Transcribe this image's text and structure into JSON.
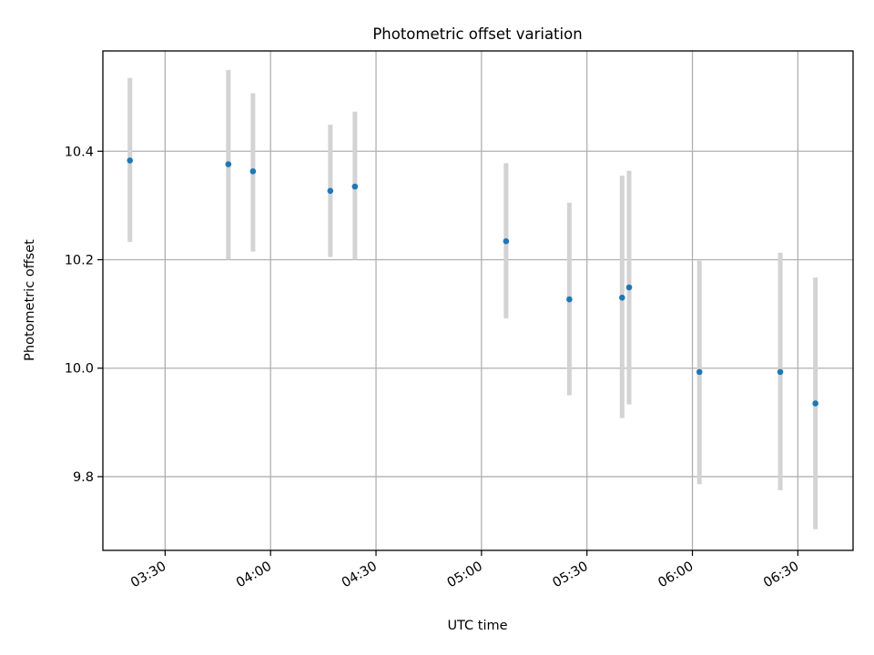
{
  "chart_data": {
    "type": "scatter",
    "title": "Photometric offset variation",
    "xlabel": "UTC time",
    "ylabel": "Photometric offset",
    "x_ticks": [
      "03:30",
      "04:00",
      "04:30",
      "05:00",
      "05:30",
      "06:00",
      "06:30"
    ],
    "y_ticks": [
      "9.8",
      "10.0",
      "10.2",
      "10.4"
    ],
    "x_tick_minutes": [
      210,
      240,
      270,
      300,
      330,
      360,
      390
    ],
    "y_tick_values": [
      9.8,
      10.0,
      10.2,
      10.4
    ],
    "xlim_minutes": [
      192.3,
      405.7
    ],
    "ylim": [
      9.664,
      10.585
    ],
    "grid": true,
    "x_tick_rotation_deg": 30,
    "colors": {
      "points": "#1f77b4",
      "errorbars": "#d3d3d3",
      "grid": "#b0b0b0"
    },
    "points": [
      {
        "time": "03:20",
        "y": 10.383,
        "err_low": 10.233,
        "err_high": 10.535
      },
      {
        "time": "03:48",
        "y": 10.376,
        "err_low": 10.2,
        "err_high": 10.55
      },
      {
        "time": "03:55",
        "y": 10.363,
        "err_low": 10.215,
        "err_high": 10.507
      },
      {
        "time": "04:17",
        "y": 10.327,
        "err_low": 10.205,
        "err_high": 10.449
      },
      {
        "time": "04:24",
        "y": 10.335,
        "err_low": 10.2,
        "err_high": 10.473
      },
      {
        "time": "05:07",
        "y": 10.234,
        "err_low": 10.092,
        "err_high": 10.378
      },
      {
        "time": "05:25",
        "y": 10.127,
        "err_low": 9.95,
        "err_high": 10.305
      },
      {
        "time": "05:40",
        "y": 10.13,
        "err_low": 9.908,
        "err_high": 10.355
      },
      {
        "time": "05:42",
        "y": 10.149,
        "err_low": 9.933,
        "err_high": 10.364
      },
      {
        "time": "06:02",
        "y": 9.993,
        "err_low": 9.786,
        "err_high": 10.198
      },
      {
        "time": "06:25",
        "y": 9.993,
        "err_low": 9.775,
        "err_high": 10.213
      },
      {
        "time": "06:35",
        "y": 9.935,
        "err_low": 9.703,
        "err_high": 10.167
      }
    ]
  }
}
